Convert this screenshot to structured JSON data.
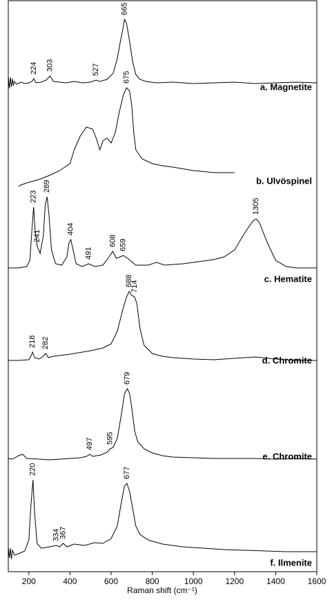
{
  "chart_data": {
    "type": "line",
    "xlabel": "Raman shift (cm⁻¹)",
    "xlim": [
      100,
      1600
    ],
    "xticks": [
      200,
      400,
      600,
      800,
      1000,
      1200,
      1400,
      1600
    ],
    "color": "#000000",
    "series": [
      {
        "name": "a. Magnetite",
        "peaks": [
          224,
          303,
          527,
          665
        ],
        "x": [
          100,
          105,
          110,
          115,
          120,
          125,
          130,
          140,
          160,
          180,
          200,
          215,
          224,
          235,
          260,
          285,
          303,
          320,
          350,
          380,
          420,
          460,
          500,
          527,
          545,
          580,
          610,
          630,
          645,
          655,
          665,
          675,
          690,
          705,
          720,
          740,
          770,
          820,
          900,
          1000,
          1100,
          1200,
          1300,
          1400,
          1500,
          1600
        ],
        "values": [
          20,
          2,
          18,
          4,
          16,
          6,
          12,
          8,
          11,
          9,
          10,
          12,
          16,
          10,
          11,
          14,
          20,
          12,
          11,
          10,
          12,
          10,
          11,
          14,
          12,
          15,
          24,
          45,
          70,
          85,
          102,
          96,
          70,
          40,
          22,
          15,
          12,
          10,
          11,
          9,
          10,
          11,
          9,
          10,
          11,
          10
        ]
      },
      {
        "name": "b. Ulvöspinel",
        "peaks": [
          675
        ],
        "x": [
          150,
          160,
          200,
          250,
          300,
          350,
          400,
          420,
          450,
          480,
          510,
          530,
          545,
          560,
          580,
          600,
          620,
          640,
          660,
          675,
          690,
          700,
          710,
          720,
          750,
          800,
          850,
          900,
          1000,
          1100,
          1200
        ],
        "values": [
          2,
          4,
          8,
          12,
          18,
          25,
          35,
          55,
          75,
          88,
          85,
          70,
          55,
          68,
          72,
          65,
          80,
          110,
          135,
          145,
          140,
          120,
          80,
          55,
          42,
          35,
          32,
          30,
          25,
          22,
          22
        ]
      },
      {
        "name": "c. Hematite",
        "peaks": [
          223,
          241,
          289,
          404,
          491,
          608,
          659,
          1305
        ],
        "x": [
          100,
          150,
          190,
          205,
          215,
          223,
          230,
          241,
          255,
          270,
          280,
          289,
          298,
          310,
          330,
          360,
          385,
          395,
          404,
          415,
          430,
          460,
          491,
          520,
          560,
          590,
          608,
          625,
          645,
          659,
          680,
          720,
          780,
          820,
          860,
          950,
          1050,
          1100,
          1150,
          1200,
          1250,
          1290,
          1305,
          1320,
          1360,
          1400,
          1450,
          1500,
          1600
        ],
        "values": [
          4,
          4,
          6,
          15,
          60,
          92,
          60,
          35,
          25,
          50,
          95,
          107,
          80,
          30,
          10,
          8,
          20,
          40,
          45,
          30,
          10,
          6,
          10,
          6,
          8,
          20,
          28,
          18,
          20,
          22,
          18,
          8,
          8,
          12,
          8,
          10,
          14,
          16,
          20,
          30,
          55,
          72,
          75,
          70,
          40,
          15,
          6,
          4,
          4
        ]
      },
      {
        "name": "d. Chromite",
        "peaks": [
          218,
          282,
          688,
          714
        ],
        "x": [
          100,
          150,
          200,
          210,
          218,
          228,
          250,
          270,
          282,
          295,
          320,
          400,
          500,
          560,
          600,
          630,
          655,
          675,
          688,
          700,
          714,
          725,
          740,
          760,
          800,
          850,
          900,
          1000,
          1100,
          1200,
          1300,
          1400,
          1500,
          1600
        ],
        "values": [
          8,
          8,
          9,
          14,
          20,
          12,
          10,
          14,
          18,
          12,
          14,
          17,
          22,
          26,
          32,
          50,
          80,
          100,
          108,
          102,
          100,
          90,
          55,
          30,
          18,
          14,
          12,
          10,
          9,
          11,
          13,
          10,
          8,
          8
        ]
      },
      {
        "name": "e. Chromite",
        "peaks": [
          497,
          595,
          679
        ],
        "x": [
          100,
          120,
          150,
          170,
          190,
          250,
          300,
          350,
          400,
          450,
          480,
          497,
          510,
          550,
          580,
          595,
          610,
          630,
          650,
          665,
          679,
          690,
          700,
          715,
          730,
          760,
          800,
          850,
          900,
          1000,
          1100,
          1200,
          1300,
          1400,
          1500,
          1600
        ],
        "values": [
          6,
          5,
          10,
          12,
          6,
          5,
          4,
          5,
          6,
          7,
          9,
          12,
          9,
          11,
          15,
          20,
          22,
          35,
          70,
          100,
          107,
          100,
          80,
          45,
          30,
          20,
          14,
          10,
          8,
          7,
          6,
          6,
          6,
          5,
          6,
          5
        ]
      },
      {
        "name": "f. Ilmenite",
        "peaks": [
          220,
          334,
          367,
          677
        ],
        "x": [
          100,
          105,
          110,
          115,
          120,
          130,
          150,
          180,
          200,
          210,
          220,
          228,
          240,
          260,
          300,
          334,
          350,
          367,
          385,
          420,
          470,
          520,
          560,
          600,
          630,
          650,
          665,
          677,
          690,
          705,
          720,
          740,
          780,
          850,
          950,
          1050,
          1150,
          1250,
          1350,
          1450,
          1600
        ],
        "values": [
          20,
          4,
          18,
          2,
          15,
          8,
          10,
          14,
          30,
          80,
          117,
          70,
          25,
          18,
          20,
          22,
          20,
          25,
          20,
          24,
          22,
          26,
          25,
          32,
          50,
          85,
          108,
          112,
          100,
          75,
          50,
          38,
          30,
          24,
          20,
          18,
          16,
          15,
          14,
          13,
          13
        ]
      }
    ]
  }
}
